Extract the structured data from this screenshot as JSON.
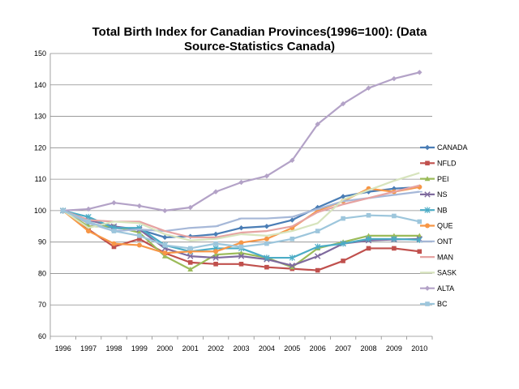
{
  "chart_data": {
    "type": "line",
    "title_lines": [
      "Total Birth Index for Canadian Provinces(1996=100): (Data",
      "Source-Statistics Canada)"
    ],
    "x": [
      "1996",
      "1997",
      "1998",
      "1999",
      "2000",
      "2001",
      "2002",
      "2003",
      "2004",
      "2005",
      "2006",
      "2007",
      "2008",
      "2009",
      "2010"
    ],
    "y_ticks": [
      "60",
      "70",
      "80",
      "90",
      "100",
      "110",
      "120",
      "130",
      "140",
      "150"
    ],
    "ylim": [
      60,
      150
    ],
    "grid": "horizontal",
    "legend_position": "right",
    "series": [
      {
        "name": "CANADA",
        "color": "#4a7db5",
        "marker": "diamond",
        "values": [
          100,
          96,
          94.5,
          94,
          91.5,
          91.8,
          92.5,
          94.5,
          95,
          97,
          101,
          104.5,
          106,
          107,
          107.5
        ]
      },
      {
        "name": "NFLD",
        "color": "#c0504d",
        "marker": "square",
        "values": [
          100,
          94,
          88.5,
          91,
          86.5,
          83.5,
          83,
          83,
          82,
          81.5,
          81,
          84,
          88,
          88,
          87
        ]
      },
      {
        "name": "PEI",
        "color": "#9bbb59",
        "marker": "triangle",
        "values": [
          100,
          95,
          95,
          93,
          85.5,
          81.3,
          86,
          86.5,
          85,
          82,
          88,
          90,
          92,
          92,
          92
        ]
      },
      {
        "name": "NS",
        "color": "#7f6a9e",
        "marker": "x",
        "values": [
          100,
          97,
          95,
          94,
          88,
          85.5,
          85,
          85.5,
          84.5,
          82.5,
          85.5,
          89.5,
          90.5,
          90.8,
          91
        ]
      },
      {
        "name": "NB",
        "color": "#4bacc6",
        "marker": "asterisk",
        "values": [
          100,
          98,
          94.5,
          94.5,
          89,
          87,
          88,
          88,
          85,
          85,
          88.5,
          89.5,
          91,
          91,
          90.7
        ]
      },
      {
        "name": "QUE",
        "color": "#f79646",
        "marker": "circle",
        "values": [
          100,
          93.5,
          89.5,
          89,
          86.5,
          87,
          87,
          89.8,
          91,
          94.5,
          100,
          103,
          107,
          106,
          107.5
        ]
      },
      {
        "name": "ONT",
        "color": "#a6b8d8",
        "marker": "dash",
        "values": [
          100,
          96,
          93.5,
          94,
          93.5,
          94.5,
          95,
          97.5,
          97.5,
          98,
          100.5,
          103,
          104,
          105,
          106
        ]
      },
      {
        "name": "MAN",
        "color": "#e6a3a2",
        "marker": "none",
        "values": [
          100,
          97,
          96.5,
          96.5,
          93.5,
          91.5,
          91.5,
          93,
          93.5,
          95,
          99.5,
          102,
          104,
          106,
          108
        ]
      },
      {
        "name": "SASK",
        "color": "#d7e4bd",
        "marker": "none",
        "values": [
          100,
          94.5,
          96.5,
          96,
          92.5,
          90.5,
          91,
          92.5,
          92,
          93.5,
          96,
          103.5,
          106.5,
          109.5,
          112
        ]
      },
      {
        "name": "ALTA",
        "color": "#b3a2c7",
        "marker": "diamond",
        "values": [
          100,
          100.5,
          102.5,
          101.5,
          100,
          101,
          106,
          109,
          111,
          116,
          127.5,
          134,
          139,
          142,
          144
        ]
      },
      {
        "name": "BC",
        "color": "#9dc6dc",
        "marker": "square",
        "values": [
          100,
          96.5,
          93.5,
          92,
          89,
          88,
          89.5,
          88.5,
          89.5,
          91,
          93.5,
          97.5,
          98.5,
          98.3,
          96.5
        ]
      }
    ]
  }
}
